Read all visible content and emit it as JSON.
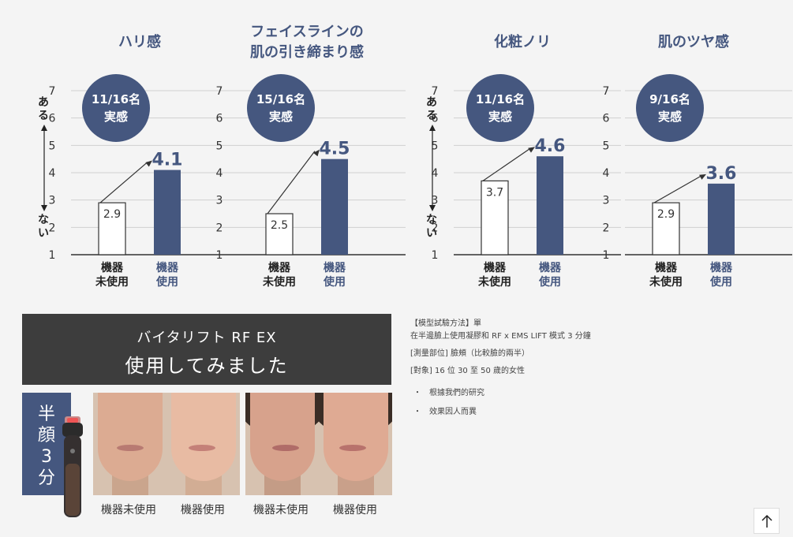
{
  "chart_data": [
    {
      "type": "bar",
      "title": [
        "ハリ感"
      ],
      "categories": [
        [
          "機器",
          "未使用"
        ],
        [
          "機器",
          "使用"
        ]
      ],
      "values": [
        2.9,
        4.1
      ],
      "ylim": [
        1,
        7
      ],
      "yticks": [
        "1",
        "2",
        "3",
        "4",
        "5",
        "6",
        "7"
      ],
      "badge": [
        "11/16名",
        "実感"
      ],
      "grid": true
    },
    {
      "type": "bar",
      "title": [
        "フェイスラインの",
        "肌の引き締まり感"
      ],
      "categories": [
        [
          "機器",
          "未使用"
        ],
        [
          "機器",
          "使用"
        ]
      ],
      "values": [
        2.5,
        4.5
      ],
      "ylim": [
        1,
        7
      ],
      "yticks": [
        "1",
        "2",
        "3",
        "4",
        "5",
        "6",
        "7"
      ],
      "badge": [
        "15/16名",
        "実感"
      ],
      "grid": true
    },
    {
      "type": "bar",
      "title": [
        "化粧ノリ"
      ],
      "categories": [
        [
          "機器",
          "未使用"
        ],
        [
          "機器",
          "使用"
        ]
      ],
      "values": [
        3.7,
        4.6
      ],
      "ylim": [
        1,
        7
      ],
      "yticks": [
        "1",
        "2",
        "3",
        "4",
        "5",
        "6",
        "7"
      ],
      "badge": [
        "11/16名",
        "実感"
      ],
      "grid": true
    },
    {
      "type": "bar",
      "title": [
        "肌のツヤ感"
      ],
      "categories": [
        [
          "機器",
          "未使用"
        ],
        [
          "機器",
          "使用"
        ]
      ],
      "values": [
        2.9,
        3.6
      ],
      "ylim": [
        1,
        7
      ],
      "yticks": [
        "1",
        "2",
        "3",
        "4",
        "5",
        "6",
        "7"
      ],
      "badge": [
        "9/16名",
        "実感"
      ],
      "grid": true
    }
  ],
  "scale_top": [
    "あ",
    "る"
  ],
  "scale_bottom": [
    "な",
    "い"
  ],
  "banner": {
    "line1": "バイタリフト RF EX",
    "line2": "使用してみました"
  },
  "half_tag": [
    "半",
    "顔",
    "3",
    "分"
  ],
  "photo_captions": [
    "機器未使用",
    "機器使用",
    "機器未使用",
    "機器使用"
  ],
  "method": {
    "line1": "【模型試驗方法】單",
    "line2": "在半邊臉上使用凝膠和 RF x EMS LIFT 模式 3 分鐘",
    "line3": "[測量部位] 臉頰（比較臉的兩半）",
    "line4": "[對象] 16 位 30 至 50 歲的女性",
    "bullets": [
      "根據我們的研究",
      "效果因人而異"
    ]
  },
  "colors": {
    "accent": "#45577f",
    "banner": "#3d3d3d",
    "background": "#f4f4f4"
  },
  "icons": {
    "scroll_top": "arrow-up-icon"
  }
}
